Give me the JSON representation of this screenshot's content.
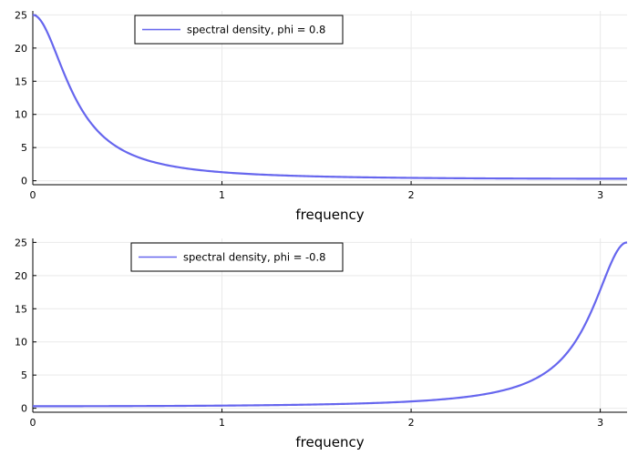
{
  "chart_data": [
    {
      "type": "line",
      "xlabel": "frequency",
      "ylabel": "",
      "xlim": [
        0,
        3.14159
      ],
      "ylim": [
        -0.6,
        25.6
      ],
      "xticks": [
        0,
        1,
        2,
        3
      ],
      "yticks": [
        0,
        5,
        10,
        15,
        20,
        25
      ],
      "grid": true,
      "legend_position": "top-center",
      "series": [
        {
          "name": "spectral density, phi = 0.8",
          "color": "#6666ee",
          "phi": 0.8,
          "x": [
            0,
            0.05,
            0.1,
            0.15,
            0.2,
            0.25,
            0.3,
            0.4,
            0.5,
            0.6,
            0.7,
            0.8,
            1.0,
            1.2,
            1.5,
            2.0,
            2.5,
            3.0,
            3.14159
          ],
          "y": [
            25.0,
            24.1,
            21.7,
            18.7,
            15.6,
            12.9,
            10.7,
            7.5,
            5.5,
            4.2,
            3.3,
            2.68,
            1.85,
            1.37,
            0.96,
            0.59,
            0.43,
            0.33,
            0.31
          ]
        }
      ]
    },
    {
      "type": "line",
      "xlabel": "frequency",
      "ylabel": "",
      "xlim": [
        0,
        3.14159
      ],
      "ylim": [
        -0.6,
        25.6
      ],
      "xticks": [
        0,
        1,
        2,
        3
      ],
      "yticks": [
        0,
        5,
        10,
        15,
        20,
        25
      ],
      "grid": true,
      "legend_position": "top-center",
      "series": [
        {
          "name": "spectral density, phi = -0.8",
          "color": "#6666ee",
          "phi": -0.8,
          "x": [
            0,
            0.64,
            1.14,
            1.64,
            1.94,
            2.14,
            2.34,
            2.44,
            2.54,
            2.64,
            2.74,
            2.84,
            2.89,
            2.94,
            2.99,
            3.04,
            3.09,
            3.14159
          ],
          "y": [
            0.31,
            0.43,
            0.59,
            0.96,
            1.37,
            1.85,
            2.68,
            3.3,
            4.2,
            5.5,
            7.5,
            10.7,
            12.9,
            15.6,
            18.7,
            21.7,
            24.1,
            25.0
          ]
        }
      ]
    }
  ]
}
